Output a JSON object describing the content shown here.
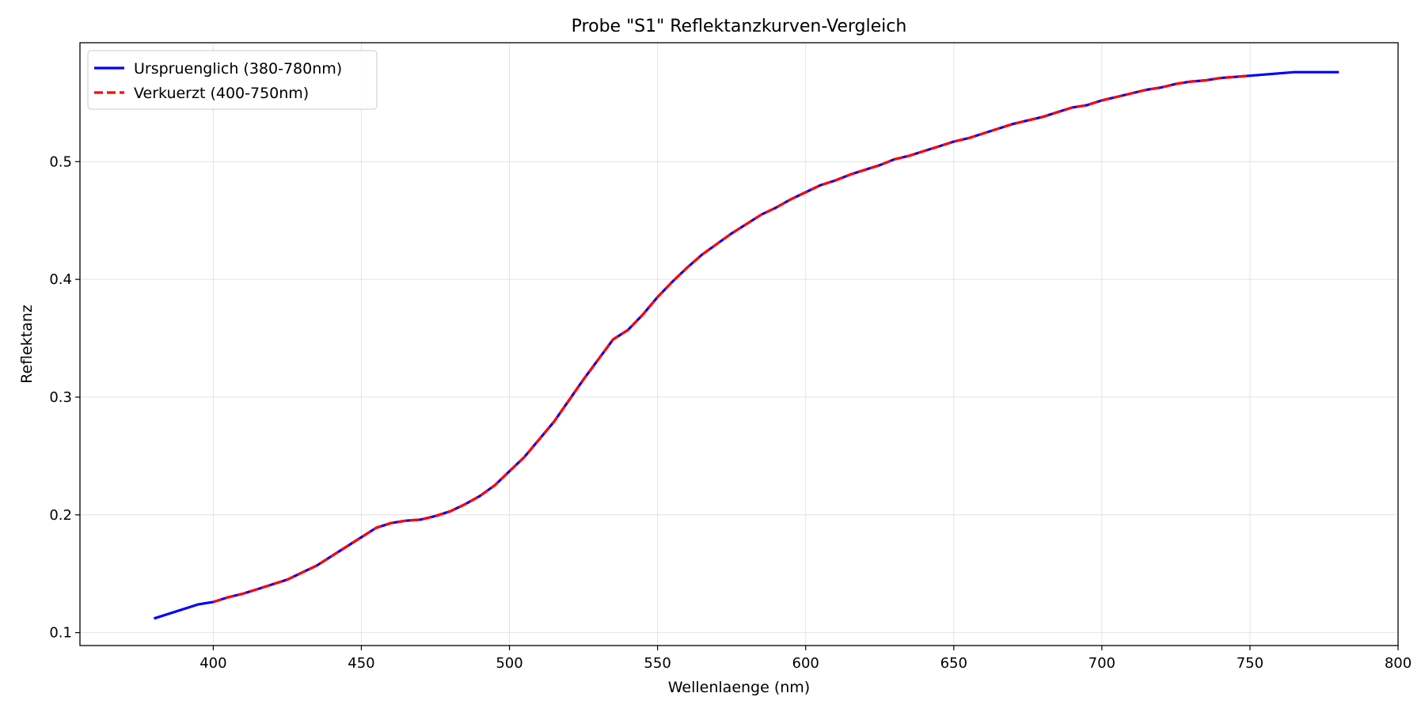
{
  "chart_data": {
    "type": "line",
    "title": "Probe \"S1\" Reflektanzkurven-Vergleich",
    "xlabel": "Wellenlaenge (nm)",
    "ylabel": "Reflektanz",
    "xlim": [
      355,
      800
    ],
    "ylim": [
      0.089,
      0.601
    ],
    "xticks": [
      "400",
      "450",
      "500",
      "550",
      "600",
      "650",
      "700",
      "750",
      "800"
    ],
    "yticks": [
      "0.1",
      "0.2",
      "0.3",
      "0.4",
      "0.5"
    ],
    "grid": true,
    "legend_position": "top-left",
    "series": [
      {
        "name": "Urspruenglich (380-780nm)",
        "color": "#0000ff",
        "style": "solid",
        "x": [
          380,
          395,
          400,
          405,
          410,
          415,
          420,
          425,
          430,
          435,
          440,
          445,
          450,
          455,
          460,
          465,
          470,
          475,
          480,
          485,
          490,
          495,
          500,
          505,
          510,
          515,
          520,
          525,
          530,
          535,
          540,
          545,
          550,
          555,
          560,
          565,
          570,
          575,
          580,
          585,
          590,
          595,
          600,
          605,
          610,
          615,
          620,
          625,
          630,
          635,
          640,
          645,
          650,
          655,
          660,
          665,
          670,
          675,
          680,
          685,
          690,
          695,
          700,
          705,
          710,
          715,
          720,
          725,
          730,
          735,
          740,
          745,
          750,
          765,
          780
        ],
        "y": [
          0.112,
          0.124,
          0.126,
          0.13,
          0.133,
          0.137,
          0.141,
          0.145,
          0.151,
          0.157,
          0.165,
          0.173,
          0.181,
          0.189,
          0.193,
          0.195,
          0.196,
          0.199,
          0.203,
          0.209,
          0.216,
          0.225,
          0.237,
          0.249,
          0.264,
          0.279,
          0.297,
          0.315,
          0.332,
          0.349,
          0.357,
          0.37,
          0.385,
          0.398,
          0.41,
          0.421,
          0.43,
          0.439,
          0.447,
          0.455,
          0.461,
          0.468,
          0.474,
          0.48,
          0.484,
          0.489,
          0.493,
          0.497,
          0.502,
          0.505,
          0.509,
          0.513,
          0.517,
          0.52,
          0.524,
          0.528,
          0.532,
          0.535,
          0.538,
          0.542,
          0.546,
          0.548,
          0.552,
          0.555,
          0.558,
          0.561,
          0.563,
          0.566,
          0.568,
          0.569,
          0.571,
          0.572,
          0.573,
          0.576,
          0.576
        ]
      },
      {
        "name": "Verkuerzt (400-750nm)",
        "color": "#ff0000",
        "style": "dashed",
        "x": [
          400,
          405,
          410,
          415,
          420,
          425,
          430,
          435,
          440,
          445,
          450,
          455,
          460,
          465,
          470,
          475,
          480,
          485,
          490,
          495,
          500,
          505,
          510,
          515,
          520,
          525,
          530,
          535,
          540,
          545,
          550,
          555,
          560,
          565,
          570,
          575,
          580,
          585,
          590,
          595,
          600,
          605,
          610,
          615,
          620,
          625,
          630,
          635,
          640,
          645,
          650,
          655,
          660,
          665,
          670,
          675,
          680,
          685,
          690,
          695,
          700,
          705,
          710,
          715,
          720,
          725,
          730,
          735,
          740,
          745,
          750
        ],
        "y": [
          0.126,
          0.13,
          0.133,
          0.137,
          0.141,
          0.145,
          0.151,
          0.157,
          0.165,
          0.173,
          0.181,
          0.189,
          0.193,
          0.195,
          0.196,
          0.199,
          0.203,
          0.209,
          0.216,
          0.225,
          0.237,
          0.249,
          0.264,
          0.279,
          0.297,
          0.315,
          0.332,
          0.349,
          0.357,
          0.37,
          0.385,
          0.398,
          0.41,
          0.421,
          0.43,
          0.439,
          0.447,
          0.455,
          0.461,
          0.468,
          0.474,
          0.48,
          0.484,
          0.489,
          0.493,
          0.497,
          0.502,
          0.505,
          0.509,
          0.513,
          0.517,
          0.52,
          0.524,
          0.528,
          0.532,
          0.535,
          0.538,
          0.542,
          0.546,
          0.548,
          0.552,
          0.555,
          0.558,
          0.561,
          0.563,
          0.566,
          0.568,
          0.569,
          0.571,
          0.572,
          0.573
        ]
      }
    ]
  }
}
